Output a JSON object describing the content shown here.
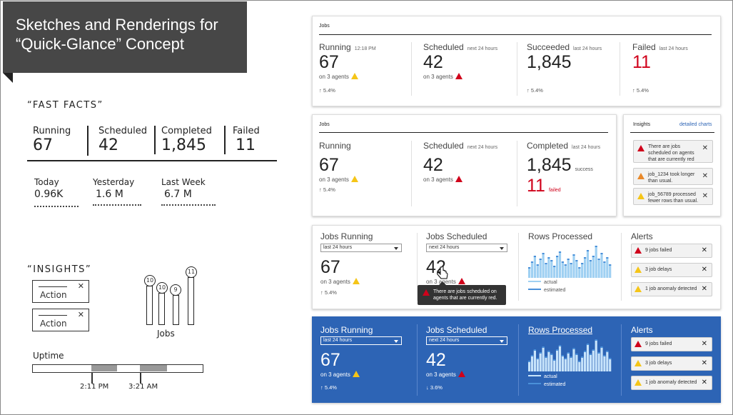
{
  "title": {
    "line1": "Sketches and Renderings for",
    "line2": "“Quick-Glance” Concept"
  },
  "sketch": {
    "fast_facts": "“FAST FACTS”",
    "facts": [
      {
        "label": "Running",
        "value": "67"
      },
      {
        "label": "Scheduled",
        "value": "42"
      },
      {
        "label": "Completed",
        "value": "1,845"
      },
      {
        "label": "Failed",
        "value": "11"
      }
    ],
    "rows": [
      {
        "label": "Today",
        "value": "0.96K"
      },
      {
        "label": "Yesterday",
        "value": "1.6 M"
      },
      {
        "label": "Last Week",
        "value": "6.7 M"
      }
    ],
    "insights": "“INSIGHTS”",
    "action": "Action",
    "jobs": "Jobs",
    "bubbles": [
      "10",
      "10",
      "9",
      "11"
    ],
    "uptime": "Uptime",
    "times": [
      "2:11 PM",
      "3:21 AM"
    ]
  },
  "panel1": {
    "header": "Jobs",
    "metrics": [
      {
        "label": "Running",
        "sub": "12:18 PM",
        "value": "67",
        "agents": "on 3 agents",
        "trend": "5.4%"
      },
      {
        "label": "Scheduled",
        "sub": "next 24 hours",
        "value": "42",
        "agents": "on 3 agents",
        "trend": ""
      },
      {
        "label": "Succeeded",
        "sub": "last 24 hours",
        "value": "1,845",
        "agents": "",
        "trend": "5.4%"
      },
      {
        "label": "Failed",
        "sub": "last 24 hours",
        "value": "11",
        "agents": "",
        "trend": "5.4%"
      }
    ]
  },
  "panel2": {
    "header": "Jobs",
    "metrics": [
      {
        "label": "Running",
        "value": "67",
        "agents": "on 3 agents",
        "trend": "5.4%"
      },
      {
        "label": "Scheduled",
        "sub": "next 24 hours",
        "value": "42",
        "agents": "on 3 agents"
      },
      {
        "label": "Completed",
        "sub": "last 24 hours",
        "value": "1,845",
        "value_note": "success",
        "value2": "11",
        "value2_note": "failed"
      }
    ],
    "insights": {
      "title": "Insights",
      "link": "detailed charts",
      "items": [
        "There are jobs scheduled on agents that are currently red",
        "job_1234 took longer than usual.",
        "job_56789 processed fewer rows than usual."
      ]
    }
  },
  "panel3": {
    "running": {
      "label": "Jobs Running",
      "dropdown": "last 24 hours",
      "value": "67",
      "agents": "on 3 agents",
      "trend": "5.4%"
    },
    "scheduled": {
      "label": "Jobs Scheduled",
      "dropdown": "next 24 hours",
      "value": "42",
      "agents": "on 3 agents"
    },
    "rows": {
      "label": "Rows Processed",
      "legend_actual": "actual",
      "legend_estimated": "estimated"
    },
    "alerts": {
      "label": "Alerts",
      "items": [
        "9 jobs failed",
        "3 job delays",
        "1 job anomaly detected"
      ]
    },
    "tooltip": "There are jobs scheduled on agents that are currently red."
  },
  "panel4": {
    "running": {
      "label": "Jobs Running",
      "dropdown": "last 24 hours",
      "value": "67",
      "agents": "on 3 agents",
      "trend": "5.4%"
    },
    "scheduled": {
      "label": "Jobs Scheduled",
      "dropdown": "next 24 hours",
      "value": "42",
      "agents": "on 3 agents",
      "trend": "3.6%"
    },
    "rows": {
      "label": "Rows Processed",
      "legend_actual": "actual",
      "legend_estimated": "estimated"
    },
    "alerts": {
      "label": "Alerts",
      "items": [
        "9 jobs failed",
        "3 job delays",
        "1 job anomaly detected"
      ]
    }
  },
  "close_glyph": "✕",
  "colors": {
    "accent_blue": "#2d64b5",
    "red": "#d0021b",
    "yellow": "#f5c518",
    "orange": "#e8892a",
    "bar_light": "#9fd0f2",
    "bar_dark": "#4a90d9"
  }
}
